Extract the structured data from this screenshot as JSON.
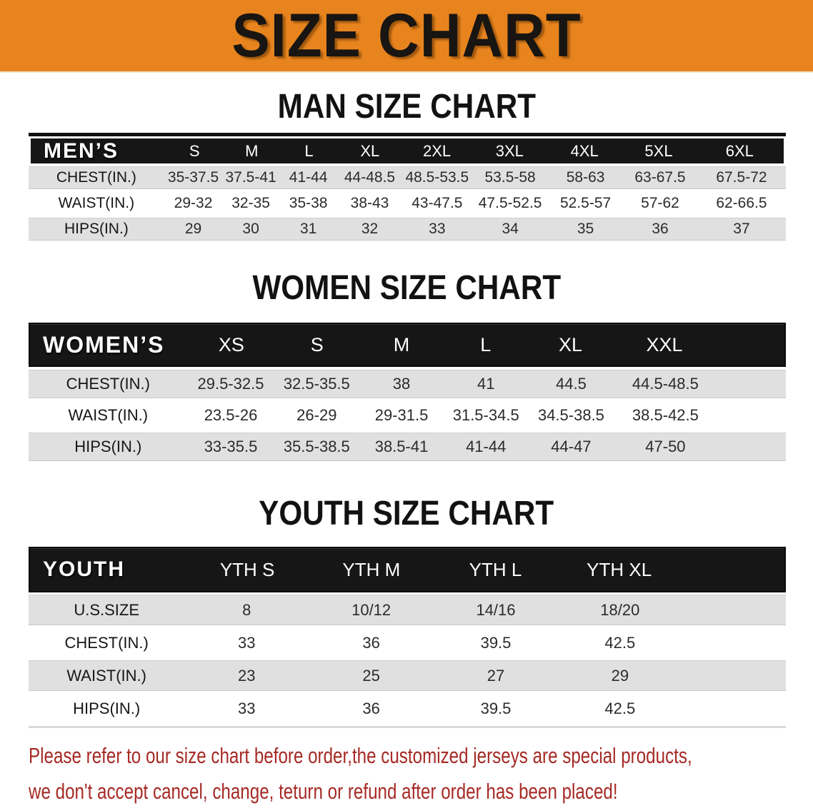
{
  "banner": {
    "title": "SIZE CHART",
    "bg_color": "#E8841E",
    "text_color": "#181512"
  },
  "colors": {
    "table_header_bg": "#161616",
    "row_band_gray": "#E0E0E0",
    "row_band_white": "#FFFFFF",
    "disclaimer_red": "#A62A25"
  },
  "sections": [
    {
      "heading": "MAN SIZE CHART",
      "label": "MEN’S",
      "columns": [
        "S",
        "M",
        "L",
        "XL",
        "2XL",
        "3XL",
        "4XL",
        "5XL",
        "6XL"
      ],
      "rows": [
        {
          "label": "CHEST(IN.)",
          "values": [
            "35-37.5",
            "37.5-41",
            "41-44",
            "44-48.5",
            "48.5-53.5",
            "53.5-58",
            "58-63",
            "63-67.5",
            "67.5-72"
          ]
        },
        {
          "label": "WAIST(IN.)",
          "values": [
            "29-32",
            "32-35",
            "35-38",
            "38-43",
            "43-47.5",
            "47.5-52.5",
            "52.5-57",
            "57-62",
            "62-66.5"
          ]
        },
        {
          "label": "HIPS(IN.)",
          "values": [
            "29",
            "30",
            "31",
            "32",
            "33",
            "34",
            "35",
            "36",
            "37"
          ]
        }
      ]
    },
    {
      "heading": "WOMEN SIZE CHART",
      "label": "WOMEN’S",
      "columns": [
        "XS",
        "S",
        "M",
        "L",
        "XL",
        "XXL"
      ],
      "rows": [
        {
          "label": "CHEST(IN.)",
          "values": [
            "29.5-32.5",
            "32.5-35.5",
            "38",
            "41",
            "44.5",
            "44.5-48.5"
          ]
        },
        {
          "label": "WAIST(IN.)",
          "values": [
            "23.5-26",
            "26-29",
            "29-31.5",
            "31.5-34.5",
            "34.5-38.5",
            "38.5-42.5"
          ]
        },
        {
          "label": "HIPS(IN.)",
          "values": [
            "33-35.5",
            "35.5-38.5",
            "38.5-41",
            "41-44",
            "44-47",
            "47-50"
          ]
        }
      ]
    },
    {
      "heading": "YOUTH SIZE CHART",
      "label": "YOUTH",
      "columns": [
        "YTH S",
        "YTH M",
        "YTH L",
        "YTH XL"
      ],
      "rows": [
        {
          "label": "U.S.SIZE",
          "values": [
            "8",
            "10/12",
            "14/16",
            "18/20"
          ]
        },
        {
          "label": "CHEST(IN.)",
          "values": [
            "33",
            "36",
            "39.5",
            "42.5"
          ]
        },
        {
          "label": "WAIST(IN.)",
          "values": [
            "23",
            "25",
            "27",
            "29"
          ]
        },
        {
          "label": "HIPS(IN.)",
          "values": [
            "33",
            "36",
            "39.5",
            "42.5"
          ]
        }
      ]
    }
  ],
  "disclaimer": {
    "line1": "Please refer to our size chart before order,the customized jerseys are special products,",
    "line2": "we don't accept cancel, change, teturn or refund after order has been placed!"
  }
}
